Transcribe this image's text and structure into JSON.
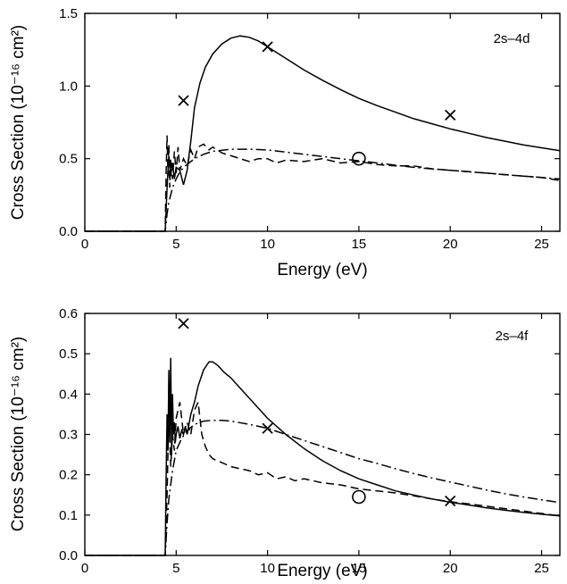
{
  "chart_data": [
    {
      "type": "line",
      "panel_label": "2s–4d",
      "xlabel": "Energy (eV)",
      "ylabel": "Cross Section (10⁻¹⁶ cm²)",
      "xlim": [
        0,
        26
      ],
      "ylim": [
        0,
        1.5
      ],
      "x_ticks": [
        0,
        5,
        10,
        15,
        20,
        25
      ],
      "x_tick_labels": [
        "0",
        "5",
        "10",
        "15",
        "20",
        "25"
      ],
      "y_ticks": [
        0,
        0.5,
        1.0,
        1.5
      ],
      "y_tick_labels": [
        "0.0",
        "0.5",
        "1.0",
        "1.5"
      ],
      "grid": false,
      "series": [
        {
          "style": "solid",
          "x": [
            0,
            4.4,
            4.5,
            4.6,
            4.7,
            4.8,
            4.9,
            5.0,
            5.2,
            5.4,
            5.6,
            5.8,
            6.0,
            6.3,
            6.6,
            7.0,
            7.5,
            8.0,
            8.5,
            9.0,
            9.5,
            10,
            11,
            12,
            13,
            14,
            15,
            16,
            17,
            18,
            19,
            20,
            21,
            22,
            23,
            24,
            25,
            26
          ],
          "y": [
            0,
            0,
            0.3,
            0.52,
            0.38,
            0.47,
            0.36,
            0.44,
            0.42,
            0.32,
            0.42,
            0.62,
            0.85,
            1.02,
            1.13,
            1.22,
            1.29,
            1.33,
            1.345,
            1.335,
            1.31,
            1.27,
            1.19,
            1.11,
            1.04,
            0.975,
            0.915,
            0.865,
            0.82,
            0.775,
            0.74,
            0.705,
            0.675,
            0.645,
            0.62,
            0.595,
            0.575,
            0.555
          ]
        },
        {
          "style": "dash-dot",
          "x": [
            0,
            4.4,
            4.5,
            4.6,
            4.8,
            5.0,
            5.2,
            5.5,
            6.0,
            6.5,
            7.0,
            8.0,
            9.0,
            10,
            11,
            12,
            13,
            14,
            15,
            16,
            17,
            18,
            19,
            20,
            21,
            22,
            23,
            24,
            25,
            26
          ],
          "y": [
            0,
            0,
            0.12,
            0.2,
            0.3,
            0.36,
            0.41,
            0.45,
            0.5,
            0.53,
            0.55,
            0.565,
            0.565,
            0.56,
            0.545,
            0.53,
            0.515,
            0.5,
            0.485,
            0.47,
            0.455,
            0.44,
            0.43,
            0.42,
            0.41,
            0.4,
            0.39,
            0.38,
            0.37,
            0.36
          ]
        },
        {
          "style": "dashed",
          "x": [
            0,
            4.4,
            4.45,
            4.5,
            4.55,
            4.6,
            4.65,
            4.7,
            4.8,
            4.9,
            5.0,
            5.1,
            5.2,
            5.4,
            5.6,
            5.8,
            6.0,
            6.2,
            6.5,
            6.8,
            7.0,
            7.5,
            8.0,
            8.5,
            9.0,
            9.5,
            10,
            10.5,
            11,
            12,
            13,
            14,
            15,
            16,
            17,
            18,
            19,
            20,
            21,
            22,
            23,
            24,
            25,
            26
          ],
          "y": [
            0,
            0,
            0.42,
            0.66,
            0.38,
            0.6,
            0.3,
            0.5,
            0.36,
            0.55,
            0.4,
            0.58,
            0.42,
            0.5,
            0.45,
            0.56,
            0.5,
            0.58,
            0.6,
            0.56,
            0.58,
            0.54,
            0.52,
            0.5,
            0.48,
            0.5,
            0.5,
            0.47,
            0.49,
            0.48,
            0.5,
            0.47,
            0.48,
            0.46,
            0.45,
            0.45,
            0.43,
            0.42,
            0.41,
            0.4,
            0.39,
            0.38,
            0.37,
            0.35
          ]
        }
      ],
      "markers": [
        {
          "symbol": "x",
          "x": 5.4,
          "y": 0.9
        },
        {
          "symbol": "x",
          "x": 10,
          "y": 1.27
        },
        {
          "symbol": "x",
          "x": 20,
          "y": 0.8
        },
        {
          "symbol": "o",
          "x": 15,
          "y": 0.5
        }
      ]
    },
    {
      "type": "line",
      "panel_label": "2s–4f",
      "xlabel": "Energy (eV)",
      "ylabel": "Cross Section (10⁻¹⁶ cm²)",
      "xlim": [
        0,
        26
      ],
      "ylim": [
        0,
        0.6
      ],
      "x_ticks": [
        0,
        5,
        10,
        15,
        20,
        25
      ],
      "x_tick_labels": [
        "0",
        "5",
        "10",
        "15",
        "20",
        "25"
      ],
      "y_ticks": [
        0,
        0.1,
        0.2,
        0.3,
        0.4,
        0.5,
        0.6
      ],
      "y_tick_labels": [
        "0.0",
        "0.1",
        "0.2",
        "0.3",
        "0.4",
        "0.5",
        "0.6"
      ],
      "grid": false,
      "series": [
        {
          "style": "solid",
          "x": [
            0,
            4.4,
            4.45,
            4.5,
            4.55,
            4.6,
            4.65,
            4.7,
            4.75,
            4.8,
            4.85,
            4.9,
            4.95,
            5.0,
            5.1,
            5.2,
            5.3,
            5.4,
            5.5,
            5.6,
            5.8,
            6.0,
            6.2,
            6.5,
            6.8,
            7.0,
            7.3,
            7.6,
            8.0,
            8.5,
            9.0,
            9.5,
            10,
            11,
            12,
            13,
            14,
            15,
            16,
            17,
            18,
            19,
            20,
            21,
            22,
            23,
            24,
            25,
            26
          ],
          "y": [
            0,
            0,
            0.2,
            0.35,
            0.26,
            0.46,
            0.28,
            0.49,
            0.25,
            0.4,
            0.3,
            0.33,
            0.28,
            0.3,
            0.32,
            0.29,
            0.31,
            0.3,
            0.32,
            0.3,
            0.35,
            0.38,
            0.42,
            0.46,
            0.48,
            0.48,
            0.47,
            0.455,
            0.44,
            0.415,
            0.39,
            0.365,
            0.34,
            0.3,
            0.265,
            0.235,
            0.21,
            0.19,
            0.175,
            0.16,
            0.15,
            0.14,
            0.132,
            0.125,
            0.118,
            0.112,
            0.107,
            0.102,
            0.098
          ]
        },
        {
          "style": "dash-dot",
          "x": [
            0,
            4.4,
            4.5,
            4.6,
            4.8,
            5.0,
            5.3,
            5.6,
            6.0,
            6.5,
            7.0,
            7.5,
            8.0,
            9.0,
            10,
            11,
            12,
            13,
            14,
            15,
            16,
            17,
            18,
            19,
            20,
            21,
            22,
            23,
            24,
            25,
            26
          ],
          "y": [
            0,
            0,
            0.08,
            0.14,
            0.21,
            0.26,
            0.29,
            0.31,
            0.325,
            0.333,
            0.335,
            0.335,
            0.333,
            0.325,
            0.315,
            0.3,
            0.285,
            0.27,
            0.255,
            0.24,
            0.228,
            0.215,
            0.203,
            0.192,
            0.182,
            0.172,
            0.162,
            0.153,
            0.145,
            0.138,
            0.131
          ]
        },
        {
          "style": "dashed",
          "x": [
            0,
            4.4,
            4.5,
            4.6,
            4.7,
            4.8,
            4.9,
            5.0,
            5.2,
            5.4,
            5.6,
            5.8,
            6.0,
            6.2,
            6.4,
            6.6,
            6.8,
            7.0,
            7.5,
            8.0,
            8.5,
            9.0,
            9.5,
            10,
            10.5,
            11,
            11.5,
            12,
            13,
            14,
            15,
            16,
            17,
            18,
            19,
            20,
            21,
            22,
            23,
            24,
            25,
            26
          ],
          "y": [
            0,
            0,
            0.15,
            0.36,
            0.22,
            0.3,
            0.26,
            0.34,
            0.38,
            0.3,
            0.33,
            0.3,
            0.36,
            0.38,
            0.3,
            0.27,
            0.25,
            0.24,
            0.23,
            0.22,
            0.215,
            0.21,
            0.2,
            0.205,
            0.19,
            0.195,
            0.185,
            0.19,
            0.18,
            0.175,
            0.165,
            0.16,
            0.155,
            0.148,
            0.14,
            0.133,
            0.128,
            0.122,
            0.116,
            0.11,
            0.104,
            0.098
          ]
        }
      ],
      "markers": [
        {
          "symbol": "x",
          "x": 5.4,
          "y": 0.575
        },
        {
          "symbol": "x",
          "x": 10,
          "y": 0.315
        },
        {
          "symbol": "x",
          "x": 20,
          "y": 0.135
        },
        {
          "symbol": "o",
          "x": 15,
          "y": 0.145
        }
      ]
    }
  ]
}
